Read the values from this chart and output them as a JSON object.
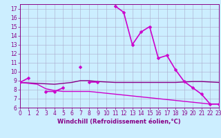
{
  "background_color": "#cceeff",
  "grid_color": "#aaaacc",
  "xlabel": "Windchill (Refroidissement éolien,°C)",
  "xlim": [
    0,
    23
  ],
  "ylim": [
    6,
    17.5
  ],
  "xticks": [
    0,
    1,
    2,
    3,
    4,
    5,
    6,
    7,
    8,
    9,
    10,
    11,
    12,
    13,
    14,
    15,
    16,
    17,
    18,
    19,
    20,
    21,
    22,
    23
  ],
  "yticks": [
    6,
    7,
    8,
    9,
    10,
    11,
    12,
    13,
    14,
    15,
    16,
    17
  ],
  "main_segments": [
    {
      "x": [
        0,
        1
      ],
      "y": [
        8.8,
        9.3
      ]
    },
    {
      "x": [
        3,
        4,
        5
      ],
      "y": [
        7.8,
        7.8,
        8.2
      ]
    },
    {
      "x": [
        7
      ],
      "y": [
        10.5
      ]
    },
    {
      "x": [
        8,
        9
      ],
      "y": [
        8.8,
        8.8
      ]
    },
    {
      "x": [
        11,
        12,
        13,
        14,
        15,
        16,
        17,
        18,
        19,
        20,
        21,
        22,
        23
      ],
      "y": [
        17.3,
        16.6,
        13.0,
        14.4,
        15.0,
        11.5,
        11.8,
        10.2,
        8.9,
        8.2,
        7.5,
        6.4,
        6.4
      ]
    }
  ],
  "band_upper_x": [
    0,
    1,
    2,
    3,
    4,
    5,
    6,
    7,
    8,
    9,
    10,
    11,
    12,
    13,
    14,
    15,
    16,
    17,
    18,
    19,
    20,
    21,
    22,
    23
  ],
  "band_upper_y": [
    8.8,
    8.75,
    8.7,
    8.65,
    8.6,
    8.7,
    8.8,
    9.0,
    9.0,
    8.9,
    8.85,
    8.8,
    8.8,
    8.8,
    8.8,
    8.8,
    8.8,
    8.8,
    8.8,
    8.85,
    8.9,
    8.9,
    8.85,
    8.8
  ],
  "band_lower_x": [
    0,
    1,
    2,
    3,
    4,
    5,
    6,
    7,
    8,
    9,
    10,
    11,
    12,
    13,
    14,
    15,
    16,
    17,
    18,
    19,
    20,
    21,
    22,
    23
  ],
  "band_lower_y": [
    8.8,
    8.7,
    8.6,
    8.1,
    7.9,
    7.8,
    7.8,
    7.8,
    7.8,
    7.7,
    7.6,
    7.5,
    7.4,
    7.3,
    7.2,
    7.1,
    7.0,
    6.9,
    6.8,
    6.7,
    6.6,
    6.5,
    6.4,
    6.4
  ],
  "line_magenta": "#cc00cc",
  "line_dark": "#880088",
  "marker_style": "D",
  "markersize": 2.5,
  "linewidth_main": 1.2,
  "linewidth_band": 1.0,
  "tick_labelsize": 5.5,
  "xlabel_fontsize": 6.0
}
